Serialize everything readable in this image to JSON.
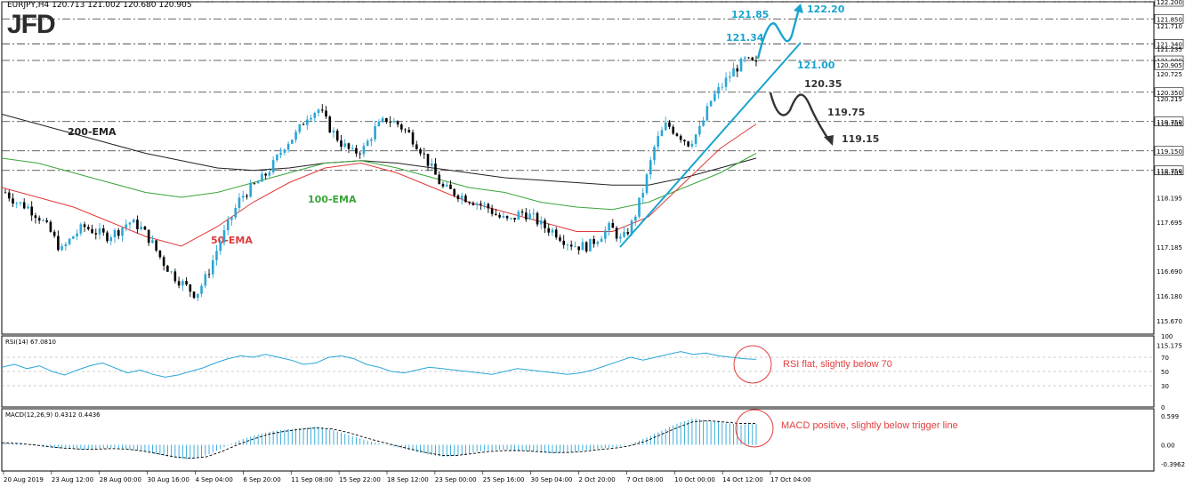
{
  "header": {
    "symbol_text": "EURJPY,H4  120.713 121.002 120.680 120.905"
  },
  "logo": {
    "text": "JFD"
  },
  "colors": {
    "bull": "#2aa6d6",
    "bear": "#000000",
    "ema50": "#e03a3a",
    "ema100": "#3aa53a",
    "ema200": "#222222",
    "up_target": "#1aa4cf",
    "down_target": "#333333",
    "note": "#e43d3d"
  },
  "chart_data": [
    {
      "type": "candlestick",
      "title": "EURJPY,H4",
      "ylim": [
        115.4,
        122.2
      ],
      "y_ticks": [
        "122.200",
        "121.850",
        "121.710",
        "121.340",
        "121.235",
        "121.000",
        "120.905",
        "120.725",
        "120.350",
        "120.215",
        "119.750",
        "119.705",
        "119.150",
        "118.750",
        "118.705",
        "118.195",
        "117.695",
        "117.185",
        "116.690",
        "116.180",
        "115.670",
        "115.175"
      ],
      "x_ticks": [
        "20 Aug 2019",
        "23 Aug 12:00",
        "28 Aug 00:00",
        "30 Aug 16:00",
        "4 Sep 04:00",
        "6 Sep 20:00",
        "11 Sep 08:00",
        "15 Sep 22:00",
        "18 Sep 12:00",
        "23 Sep 00:00",
        "25 Sep 16:00",
        "30 Sep 04:00",
        "2 Oct 20:00",
        "7 Oct 08:00",
        "10 Oct 00:00",
        "14 Oct 12:00",
        "17 Oct 04:00"
      ],
      "close_path": [
        118.3,
        118.1,
        118.0,
        117.8,
        117.5,
        117.1,
        117.4,
        117.6,
        117.5,
        117.4,
        117.5,
        117.7,
        117.6,
        117.3,
        116.9,
        116.6,
        116.4,
        116.2,
        116.6,
        117.2,
        117.7,
        118.2,
        118.4,
        118.6,
        118.9,
        119.3,
        119.5,
        119.9,
        120.0,
        119.6,
        119.3,
        119.1,
        119.2,
        119.6,
        119.8,
        119.7,
        119.5,
        119.2,
        118.8,
        118.4,
        118.3,
        118.2,
        118.1,
        118.0,
        117.8,
        117.7,
        117.9,
        117.8,
        117.6,
        117.5,
        117.3,
        117.2,
        117.2,
        117.4,
        117.6,
        117.3,
        117.7,
        118.4,
        119.3,
        119.7,
        119.5,
        119.3,
        119.6,
        120.2,
        120.5,
        120.8,
        121.0,
        120.9
      ],
      "series": [
        {
          "name": "200-EMA",
          "values": [
            119.9,
            119.7,
            119.5,
            119.3,
            119.1,
            118.95,
            118.8,
            118.75,
            118.8,
            118.9,
            118.95,
            118.9,
            118.8,
            118.7,
            118.6,
            118.55,
            118.5,
            118.45,
            118.45,
            118.6,
            118.8,
            119.0
          ]
        },
        {
          "name": "100-EMA",
          "values": [
            119.0,
            118.9,
            118.7,
            118.5,
            118.3,
            118.2,
            118.3,
            118.5,
            118.7,
            118.9,
            118.95,
            118.8,
            118.6,
            118.4,
            118.3,
            118.1,
            118.0,
            117.95,
            118.1,
            118.4,
            118.7,
            119.1
          ]
        },
        {
          "name": "50-EMA",
          "values": [
            118.4,
            118.2,
            118.0,
            117.7,
            117.4,
            117.2,
            117.6,
            118.1,
            118.5,
            118.8,
            118.9,
            118.7,
            118.4,
            118.1,
            117.9,
            117.7,
            117.5,
            117.5,
            117.8,
            118.5,
            119.2,
            119.7
          ]
        }
      ],
      "annotations": {
        "levels": [
          "121.85",
          "121.34",
          "121.00",
          "120.35",
          "119.75",
          "119.15"
        ],
        "upside_target": "122.20",
        "ema_labels": [
          "200-EMA",
          "100-EMA",
          "50-EMA"
        ]
      }
    },
    {
      "type": "line",
      "title": "RSI(14) 67.0810",
      "ylim": [
        0,
        100
      ],
      "y_ticks": [
        "100",
        "70",
        "50",
        "30",
        "0"
      ],
      "values": [
        56,
        60,
        54,
        58,
        50,
        45,
        52,
        58,
        62,
        55,
        48,
        52,
        46,
        42,
        45,
        50,
        55,
        62,
        68,
        72,
        70,
        74,
        70,
        66,
        60,
        62,
        70,
        72,
        68,
        60,
        56,
        50,
        48,
        52,
        56,
        54,
        52,
        50,
        48,
        46,
        50,
        54,
        52,
        50,
        48,
        46,
        48,
        52,
        58,
        64,
        70,
        66,
        70,
        74,
        78,
        74,
        76,
        72,
        70,
        68,
        67
      ],
      "note": "RSI flat, slightly below 70"
    },
    {
      "type": "bar",
      "title": "MACD(12,26,9) 0.4312 0.4436",
      "ylim": [
        -0.3962,
        0.599
      ],
      "y_ticks": [
        "0.599",
        "0.00",
        "-0.3962"
      ],
      "values": [
        0.05,
        0.02,
        -0.02,
        -0.06,
        -0.08,
        -0.1,
        -0.08,
        -0.06,
        -0.1,
        -0.15,
        -0.22,
        -0.28,
        -0.3,
        -0.2,
        -0.05,
        0.1,
        0.2,
        0.28,
        0.32,
        0.35,
        0.38,
        0.3,
        0.2,
        0.1,
        0.02,
        -0.05,
        -0.12,
        -0.2,
        -0.25,
        -0.22,
        -0.15,
        -0.12,
        -0.1,
        -0.12,
        -0.15,
        -0.18,
        -0.16,
        -0.12,
        -0.08,
        -0.05,
        0.02,
        0.15,
        0.3,
        0.45,
        0.55,
        0.5,
        0.45,
        0.42,
        0.43
      ],
      "signal": [
        0.04,
        0.03,
        0.0,
        -0.04,
        -0.07,
        -0.09,
        -0.09,
        -0.08,
        -0.09,
        -0.13,
        -0.19,
        -0.25,
        -0.28,
        -0.25,
        -0.14,
        0.0,
        0.12,
        0.22,
        0.28,
        0.32,
        0.35,
        0.33,
        0.26,
        0.16,
        0.07,
        -0.01,
        -0.09,
        -0.16,
        -0.22,
        -0.22,
        -0.18,
        -0.14,
        -0.12,
        -0.12,
        -0.14,
        -0.16,
        -0.16,
        -0.14,
        -0.1,
        -0.07,
        -0.02,
        0.08,
        0.22,
        0.36,
        0.48,
        0.5,
        0.47,
        0.44,
        0.44
      ],
      "note": "MACD positive, slightly below trigger line"
    }
  ]
}
